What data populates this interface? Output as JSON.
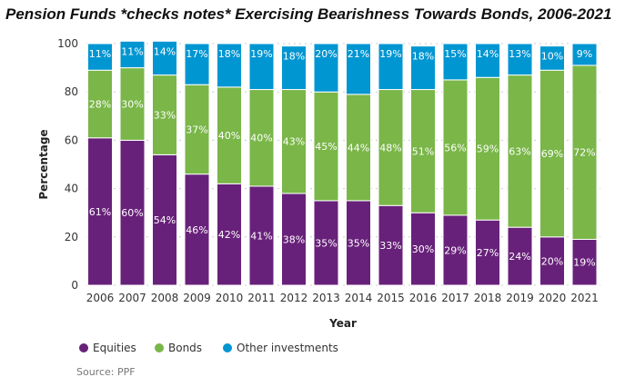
{
  "chart_data": {
    "type": "bar",
    "stacked": true,
    "title": "Pension Funds *checks notes* Exercising Bearishness Towards Bonds, 2006-2021",
    "xlabel": "Year",
    "ylabel": "Percentage",
    "ylim": [
      0,
      100
    ],
    "yticks": [
      0,
      20,
      40,
      60,
      80,
      100
    ],
    "grid": true,
    "legend": "bottom-left",
    "categories": [
      "2006",
      "2007",
      "2008",
      "2009",
      "2010",
      "2011",
      "2012",
      "2013",
      "2014",
      "2015",
      "2016",
      "2017",
      "2018",
      "2019",
      "2020",
      "2021"
    ],
    "series": [
      {
        "name": "Equities",
        "color": "#68217a",
        "values": [
          61,
          60,
          54,
          46,
          42,
          41,
          38,
          35,
          35,
          33,
          30,
          29,
          27,
          24,
          20,
          19
        ]
      },
      {
        "name": "Bonds",
        "color": "#7ab648",
        "values": [
          28,
          30,
          33,
          37,
          40,
          40,
          43,
          45,
          44,
          48,
          51,
          56,
          59,
          63,
          69,
          72
        ]
      },
      {
        "name": "Other investments",
        "color": "#0096d2",
        "values": [
          11,
          11,
          14,
          17,
          18,
          19,
          18,
          20,
          21,
          19,
          18,
          15,
          14,
          13,
          10,
          9
        ]
      }
    ],
    "source": "Source: PPF"
  }
}
